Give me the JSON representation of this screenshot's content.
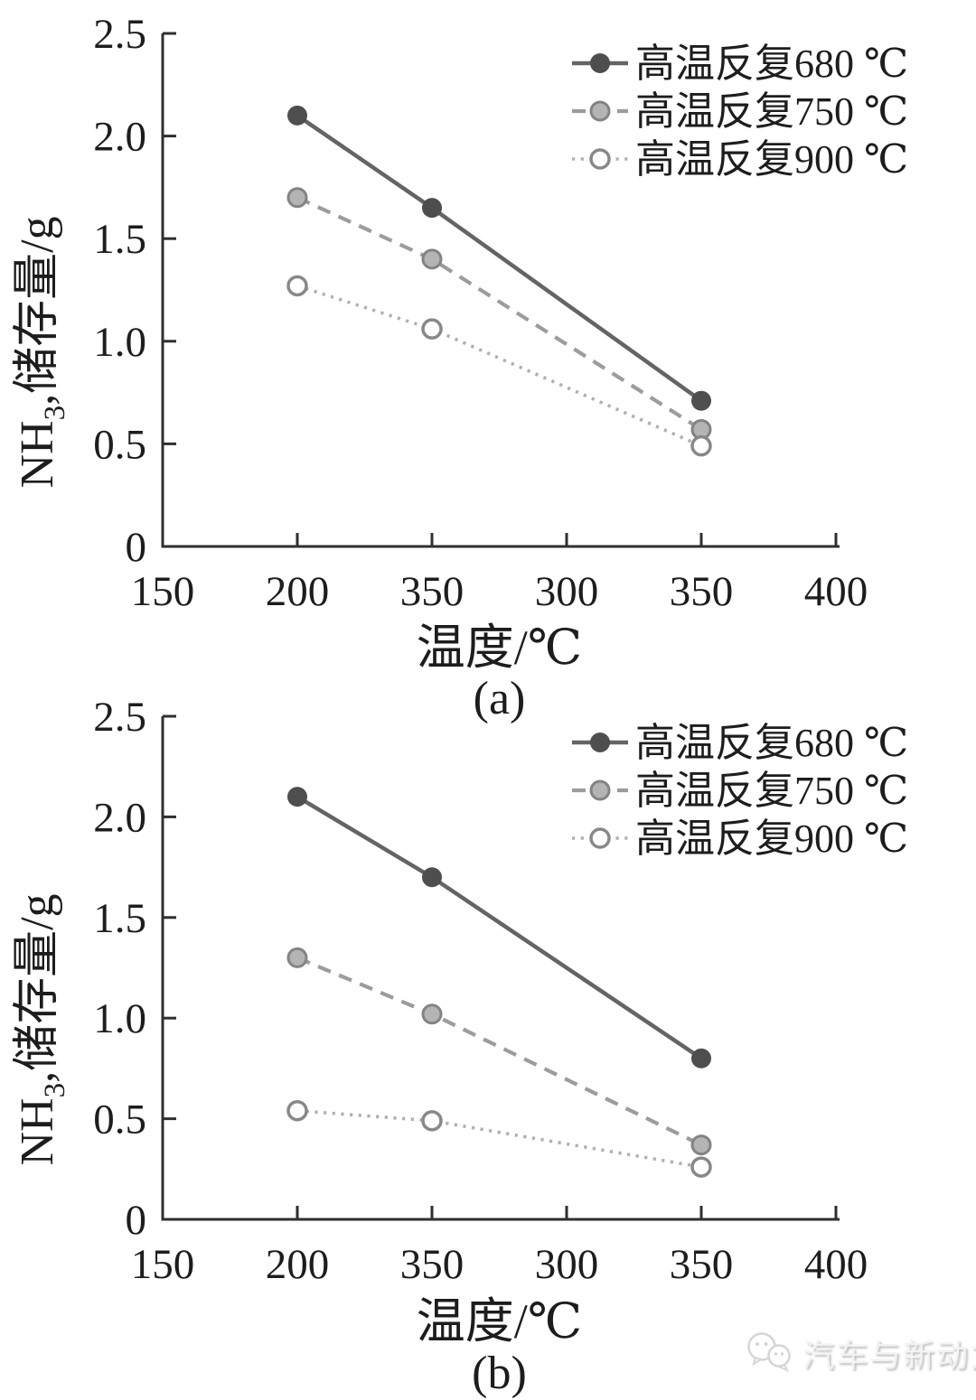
{
  "watermark": {
    "text": "汽车与新动力",
    "icon": "wechat-icon"
  },
  "colors": {
    "text": "#1d1d1d",
    "axis": "#2f2f2f",
    "series_680": "#646464",
    "series_750": "#9c9c9c",
    "series_900": "#b0b0b0"
  },
  "chart_data": [
    {
      "type": "line",
      "panel_label": "(a)",
      "title": "",
      "xlabel": "温度/℃",
      "ylabel": "NH3,储存量/g",
      "ylabel_parts": [
        {
          "text": "NH",
          "sub": false
        },
        {
          "text": "3",
          "sub": true
        },
        {
          "text": ",储存量/g",
          "sub": false
        }
      ],
      "x_tick_labels": [
        "150",
        "200",
        "350",
        "300",
        "350",
        "400"
      ],
      "y_tick_labels": [
        "0",
        "0.5",
        "1.0",
        "1.5",
        "2.0",
        "2.5"
      ],
      "ylim": [
        0,
        2.5
      ],
      "grid": false,
      "legend_position": "top-right",
      "x_data_tick_indices": [
        1,
        2,
        4
      ],
      "series": [
        {
          "name": "高温反复680 ℃",
          "values": [
            2.1,
            1.65,
            0.71
          ],
          "line_style": "solid",
          "color": "#646464",
          "marker": "filled",
          "marker_fill": "#4e4e4e",
          "marker_stroke": "#4e4e4e"
        },
        {
          "name": "高温反复750 ℃",
          "values": [
            1.7,
            1.4,
            0.57
          ],
          "line_style": "dashed",
          "color": "#9c9c9c",
          "marker": "gray",
          "marker_fill": "#b4b4b4",
          "marker_stroke": "#838383"
        },
        {
          "name": "高温反复900 ℃",
          "values": [
            1.27,
            1.06,
            0.49
          ],
          "line_style": "dotted",
          "color": "#b0b0b0",
          "marker": "open",
          "marker_fill": "#ffffff",
          "marker_stroke": "#888888"
        }
      ]
    },
    {
      "type": "line",
      "panel_label": "(b)",
      "title": "",
      "xlabel": "温度/℃",
      "ylabel": "NH3,储存量/g",
      "ylabel_parts": [
        {
          "text": "NH",
          "sub": false
        },
        {
          "text": "3",
          "sub": true
        },
        {
          "text": ",储存量/g",
          "sub": false
        }
      ],
      "x_tick_labels": [
        "150",
        "200",
        "350",
        "300",
        "350",
        "400"
      ],
      "y_tick_labels": [
        "0",
        "0.5",
        "1.0",
        "1.5",
        "2.0",
        "2.5"
      ],
      "ylim": [
        0,
        2.5
      ],
      "grid": false,
      "legend_position": "top-right",
      "x_data_tick_indices": [
        1,
        2,
        4
      ],
      "series": [
        {
          "name": "高温反复680 ℃",
          "values": [
            2.1,
            1.7,
            0.8
          ],
          "line_style": "solid",
          "color": "#646464",
          "marker": "filled",
          "marker_fill": "#4e4e4e",
          "marker_stroke": "#4e4e4e"
        },
        {
          "name": "高温反复750 ℃",
          "values": [
            1.3,
            1.02,
            0.37
          ],
          "line_style": "dashed",
          "color": "#9c9c9c",
          "marker": "gray",
          "marker_fill": "#b4b4b4",
          "marker_stroke": "#838383"
        },
        {
          "name": "高温反复900 ℃",
          "values": [
            0.54,
            0.49,
            0.26
          ],
          "line_style": "dotted",
          "color": "#b0b0b0",
          "marker": "open",
          "marker_fill": "#ffffff",
          "marker_stroke": "#888888"
        }
      ]
    }
  ]
}
